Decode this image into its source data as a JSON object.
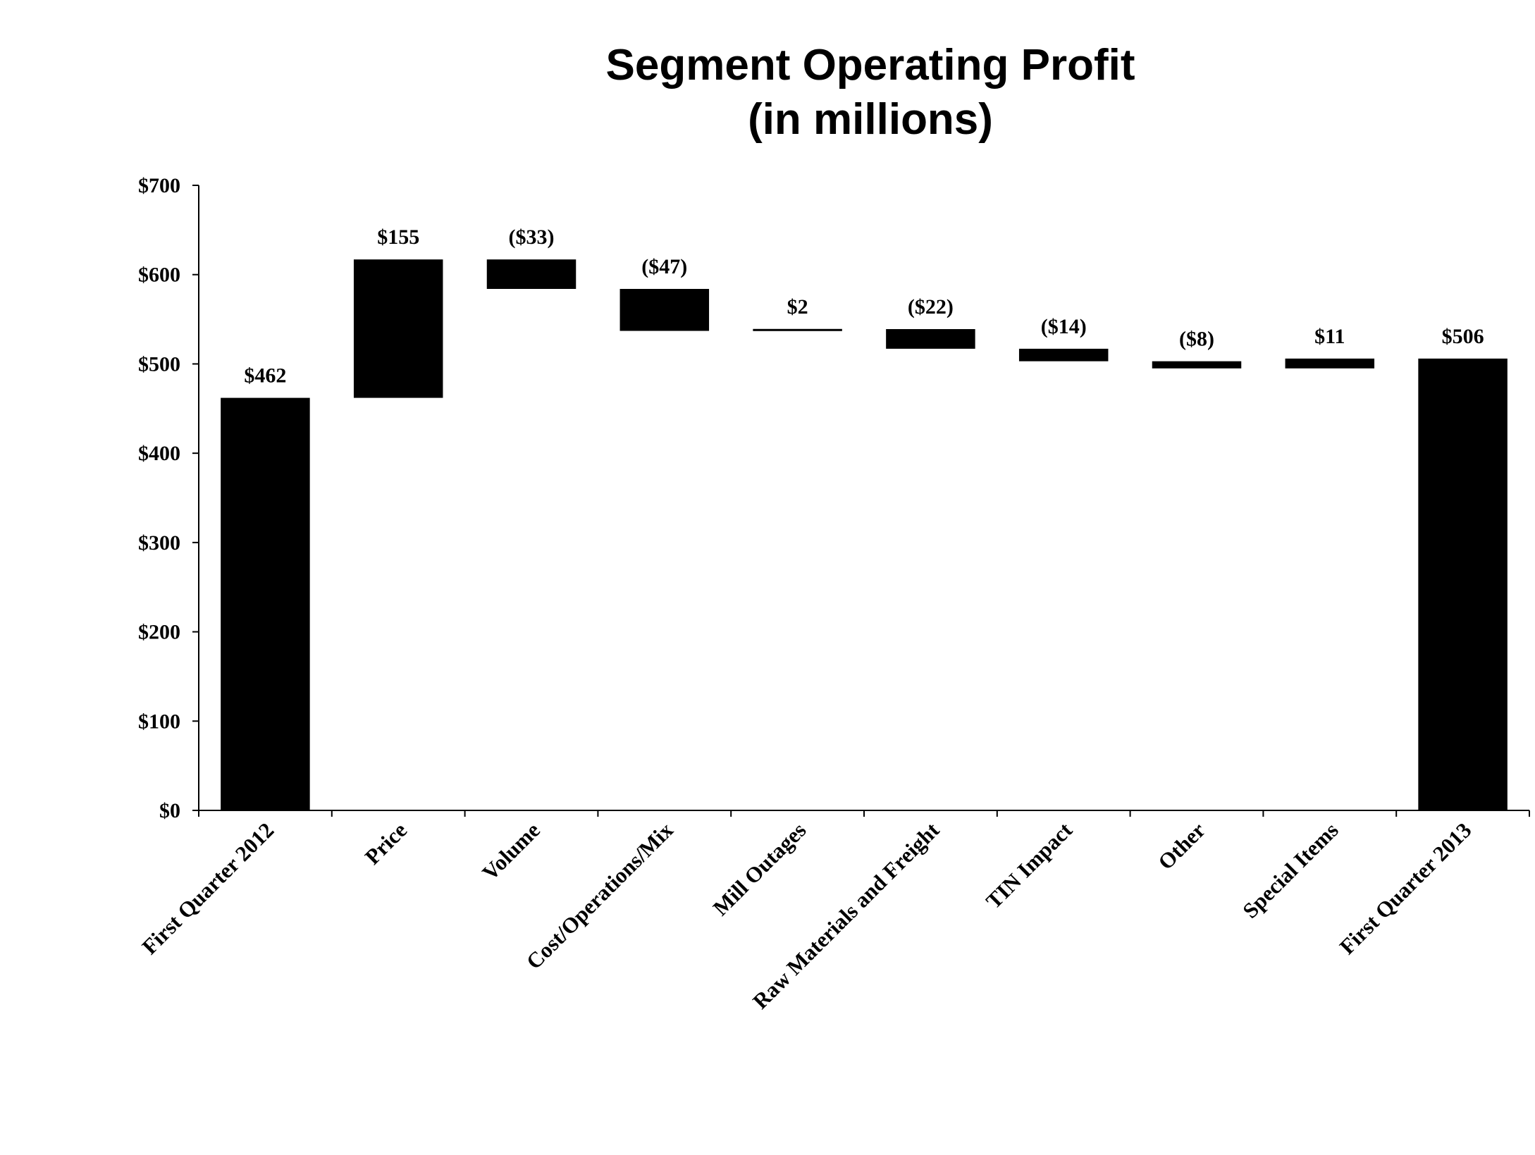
{
  "chart_data": {
    "type": "waterfall",
    "title": "Segment Operating Profit",
    "subtitle": "(in millions)",
    "xlabel": "",
    "ylabel": "",
    "ylim": [
      0,
      700
    ],
    "yticks": [
      0,
      100,
      200,
      300,
      400,
      500,
      600,
      700
    ],
    "ytick_labels": [
      "$0",
      "$100",
      "$200",
      "$300",
      "$400",
      "$500",
      "$600",
      "$700"
    ],
    "grid": false,
    "bar_color": "#000000",
    "categories": [
      "First Quarter 2012",
      "Price",
      "Volume",
      "Cost/Operations/Mix",
      "Mill Outages",
      "Raw Materials and Freight",
      "TIN Impact",
      "Other",
      "Special Items",
      "First Quarter 2013"
    ],
    "values": [
      462,
      155,
      -33,
      -47,
      2,
      -22,
      -14,
      -8,
      11,
      506
    ],
    "kinds": [
      "total",
      "delta",
      "delta",
      "delta",
      "delta",
      "delta",
      "delta",
      "delta",
      "delta",
      "total"
    ],
    "data_labels": [
      "$462",
      "$155",
      "($33)",
      "($47)",
      "$2",
      "($22)",
      "($14)",
      "($8)",
      "$11",
      "$506"
    ]
  }
}
